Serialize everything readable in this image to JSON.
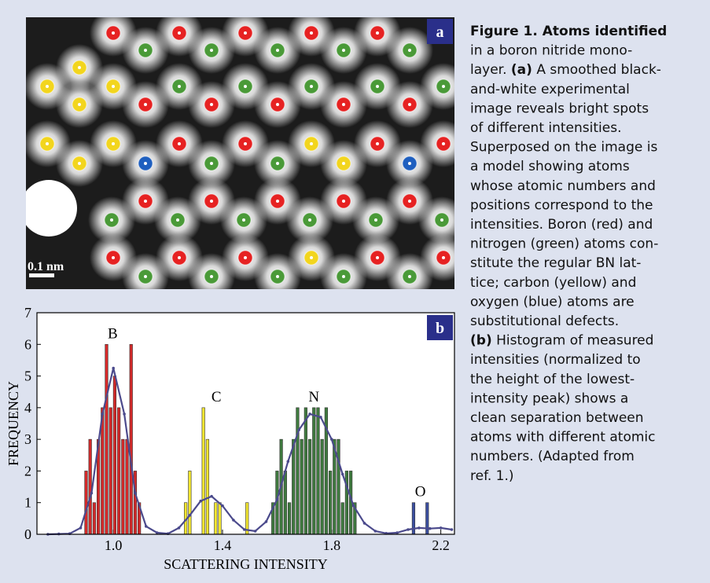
{
  "panel_a": {
    "label": "a",
    "scale_bar": "0.1 nm"
  },
  "chart_data": {
    "type": "bar",
    "label": "b",
    "xlabel": "SCATTERING INTENSITY",
    "ylabel": "FREQUENCY",
    "xlim": [
      0.72,
      2.25
    ],
    "ylim": [
      0,
      7
    ],
    "xticks": [
      {
        "value": 1,
        "label": "1.0"
      },
      1.4,
      1.8,
      2.2
    ],
    "yticks": [
      0,
      1,
      2,
      3,
      4,
      5,
      6,
      7
    ],
    "series": [
      {
        "name": "B",
        "color": "#d42a2a",
        "x": [
          0.9,
          0.915,
          0.93,
          0.945,
          0.96,
          0.975,
          0.99,
          1.005,
          1.02,
          1.035,
          1.05,
          1.065,
          1.08,
          1.095
        ],
        "values": [
          2,
          3,
          1,
          3,
          4,
          6,
          4,
          5,
          4,
          3,
          3,
          6,
          2,
          1
        ]
      },
      {
        "name": "C",
        "color": "#f2e630",
        "x": [
          1.265,
          1.28,
          1.33,
          1.345,
          1.375,
          1.39,
          1.49
        ],
        "values": [
          1,
          2,
          4,
          3,
          1,
          1,
          1
        ]
      },
      {
        "name": "N",
        "color": "#3f7a3f",
        "x": [
          1.585,
          1.6,
          1.615,
          1.63,
          1.645,
          1.66,
          1.675,
          1.69,
          1.705,
          1.72,
          1.735,
          1.75,
          1.765,
          1.78,
          1.795,
          1.81,
          1.825,
          1.84,
          1.855,
          1.87,
          1.885
        ],
        "values": [
          1,
          2,
          3,
          2,
          1,
          3,
          4,
          3,
          4,
          3,
          4,
          4,
          3,
          4,
          2,
          3,
          3,
          1,
          2,
          2,
          1
        ]
      },
      {
        "name": "O",
        "color": "#3b4fa0",
        "x": [
          2.1,
          2.15
        ],
        "values": [
          1,
          1
        ]
      },
      {
        "type": "line",
        "color": "#4b4a8c",
        "x": [
          0.76,
          0.8,
          0.84,
          0.88,
          0.92,
          0.96,
          1.0,
          1.04,
          1.08,
          1.12,
          1.16,
          1.2,
          1.24,
          1.28,
          1.32,
          1.36,
          1.4,
          1.44,
          1.48,
          1.52,
          1.56,
          1.6,
          1.64,
          1.68,
          1.72,
          1.76,
          1.8,
          1.84,
          1.88,
          1.92,
          1.96,
          2.0,
          2.04,
          2.08,
          2.12,
          2.16,
          2.2,
          2.24
        ],
        "values": [
          0,
          0.01,
          0.02,
          0.2,
          1.3,
          3.8,
          5.25,
          3.8,
          1.3,
          0.25,
          0.05,
          0.02,
          0.2,
          0.6,
          1.05,
          1.2,
          0.9,
          0.45,
          0.15,
          0.1,
          0.4,
          1.1,
          2.3,
          3.3,
          3.8,
          3.7,
          3.0,
          1.9,
          0.9,
          0.35,
          0.1,
          0.03,
          0.05,
          0.15,
          0.2,
          0.18,
          0.2,
          0.15
        ]
      }
    ]
  },
  "caption": {
    "lines": [
      [
        {
          "text": "Figure 1. Atoms identified",
          "bold": true
        }
      ],
      [
        {
          "text": "in a boron nitride mono-"
        }
      ],
      [
        {
          "text": "layer. "
        },
        {
          "text": "(a)",
          "bold": true
        },
        {
          "text": " A smoothed black-"
        }
      ],
      [
        {
          "text": "and-white experimental"
        }
      ],
      [
        {
          "text": "image reveals bright spots"
        }
      ],
      [
        {
          "text": "of different intensities."
        }
      ],
      [
        {
          "text": "Superposed on the image is"
        }
      ],
      [
        {
          "text": "a model showing atoms"
        }
      ],
      [
        {
          "text": "whose atomic numbers and"
        }
      ],
      [
        {
          "text": "positions correspond to the"
        }
      ],
      [
        {
          "text": "intensities. Boron (red) and"
        }
      ],
      [
        {
          "text": "nitrogen (green) atoms con-"
        }
      ],
      [
        {
          "text": "stitute the regular BN lat-"
        }
      ],
      [
        {
          "text": "tice; carbon (yellow) and"
        }
      ],
      [
        {
          "text": "oxygen (blue) atoms are"
        }
      ],
      [
        {
          "text": "substitutional defects."
        }
      ],
      [
        {
          "text": "(b)",
          "bold": true
        },
        {
          "text": " Histogram of measured"
        }
      ],
      [
        {
          "text": "intensities (normalized to"
        }
      ],
      [
        {
          "text": "the height of the lowest-"
        }
      ],
      [
        {
          "text": "intensity peak) shows a"
        }
      ],
      [
        {
          "text": "clean separation between"
        }
      ],
      [
        {
          "text": "atoms with different atomic"
        }
      ],
      [
        {
          "text": "numbers. (Adapted from"
        }
      ],
      [
        {
          "text": "ref. 1.)"
        }
      ]
    ]
  }
}
